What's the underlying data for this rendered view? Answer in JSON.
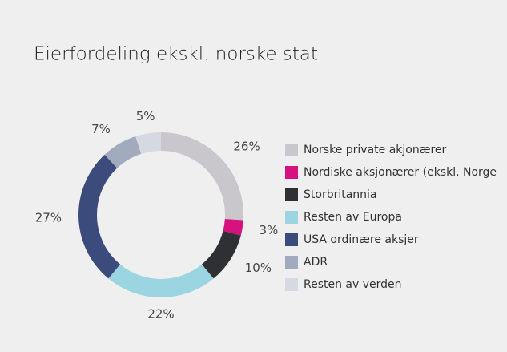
{
  "chart_data": {
    "type": "donut",
    "title": "Eierfordeling ekskl. norske stat",
    "categories": [
      "Norske private akjonærer",
      "Nordiske aksjonærer (ekskl. Norge",
      "Storbritannia",
      "Resten av Europa",
      "USA ordinære aksjer",
      "ADR",
      "Resten av verden"
    ],
    "values": [
      26,
      3,
      10,
      22,
      27,
      7,
      5
    ],
    "value_labels": [
      "26%",
      "3%",
      "10%",
      "22%",
      "27%",
      "7%",
      "5%"
    ],
    "colors": [
      "#c9c7cc",
      "#d5127e",
      "#2f3034",
      "#9bd5e1",
      "#3b4b7b",
      "#a2aabd",
      "#d6d8e2"
    ],
    "legend": "right"
  }
}
